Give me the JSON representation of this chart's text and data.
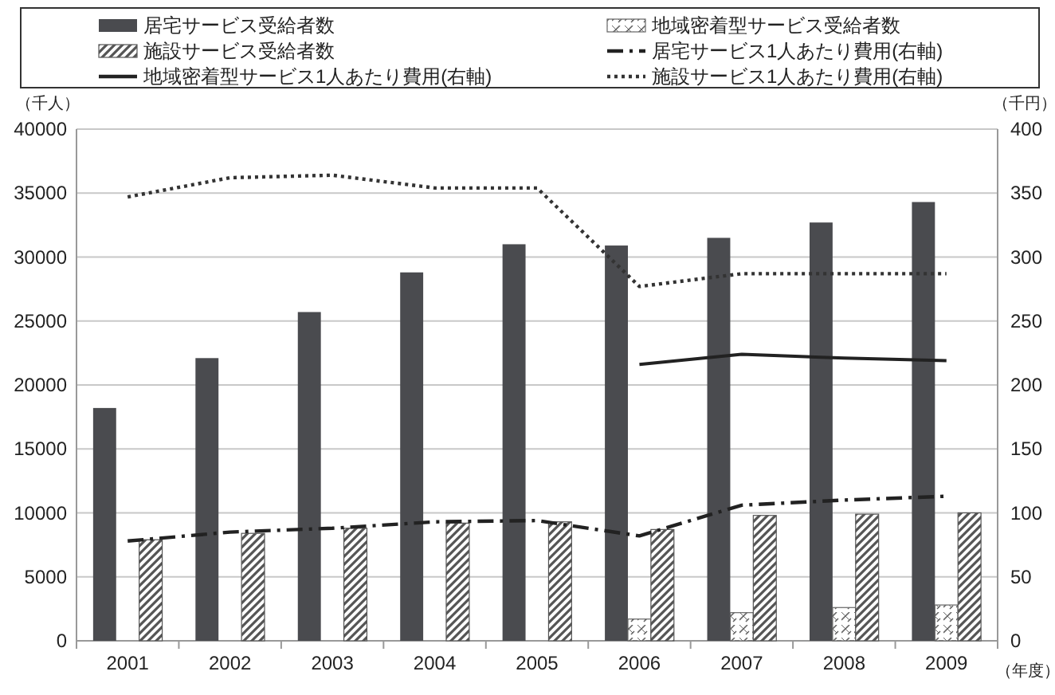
{
  "chart_data": {
    "type": "bar",
    "categories": [
      "2001",
      "2002",
      "2003",
      "2004",
      "2005",
      "2006",
      "2007",
      "2008",
      "2009"
    ],
    "series": [
      {
        "name": "居宅サービス受給者数",
        "color": "#4a4b4f",
        "values": [
          18200,
          22100,
          25700,
          28800,
          31000,
          30900,
          31500,
          32700,
          34300
        ]
      },
      {
        "name": "地域密着型サービス受給者数",
        "color": "#666666",
        "values": [
          null,
          null,
          null,
          null,
          null,
          1700,
          2200,
          2600,
          2800
        ]
      },
      {
        "name": "施設サービス受給者数",
        "color": "#555555",
        "values": [
          7900,
          8400,
          8800,
          9200,
          9300,
          8700,
          9800,
          9900,
          10000
        ]
      },
      {
        "name": "居宅サービス1人あたり費用(右軸)",
        "type": "line",
        "axis": "y2",
        "line_style": "dashed",
        "color": "#222222",
        "values": [
          78,
          85,
          88,
          93,
          94,
          82,
          106,
          110,
          113
        ]
      },
      {
        "name": "地域密着型サービス1人あたり費用(右軸)",
        "type": "line",
        "axis": "y2",
        "line_style": "solid",
        "color": "#222222",
        "values": [
          null,
          null,
          null,
          null,
          null,
          216,
          224,
          221,
          219
        ]
      },
      {
        "name": "施設サービス1人あたり費用(右軸)",
        "type": "line",
        "axis": "y2",
        "line_style": "dotted",
        "color": "#333333",
        "values": [
          347,
          362,
          364,
          354,
          354,
          277,
          287,
          287,
          287
        ]
      }
    ],
    "ylabel": "（千人）",
    "y2label": "（千円）",
    "xlabel": "（年度）",
    "ylim": [
      0,
      40000
    ],
    "yticks": [
      0,
      5000,
      10000,
      15000,
      20000,
      25000,
      30000,
      35000,
      40000
    ],
    "y2lim": [
      0,
      400
    ],
    "y2ticks": [
      0,
      50,
      100,
      150,
      200,
      250,
      300,
      350,
      400
    ],
    "grid": "y",
    "legend": "top"
  }
}
